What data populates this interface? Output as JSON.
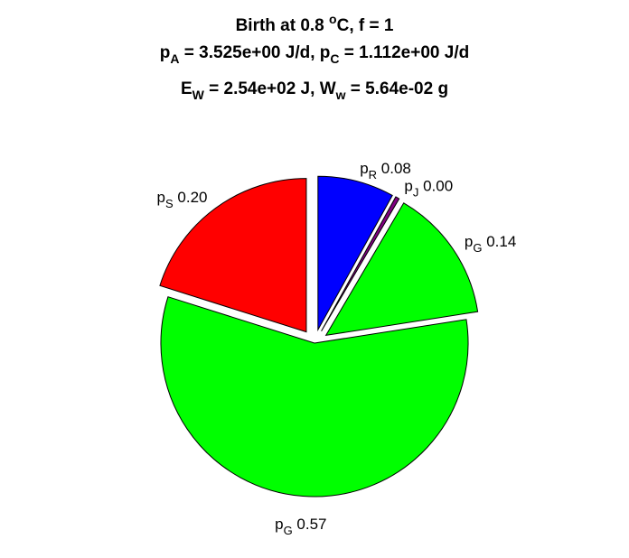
{
  "chart_data": {
    "type": "pie",
    "title": {
      "line1": {
        "prefix": "Birth at 0.8 ",
        "sup": "o",
        "suffix": "C, f = 1"
      },
      "line2": {
        "p1_base": "p",
        "p1_sub": "A",
        "p1_rest": " = 3.525e+00 J/d, ",
        "p2_base": "p",
        "p2_sub": "C",
        "p2_rest": " = 1.112e+00 J/d"
      },
      "line3": {
        "p1_base": "E",
        "p1_sub": "W",
        "p1_rest": " = 2.54e+02 J, ",
        "p2_base": "W",
        "p2_sub": "w",
        "p2_rest": " = 5.64e-02 g"
      }
    },
    "slices": [
      {
        "base": "p",
        "sub": "R",
        "value_label": "0.08",
        "value": 0.08,
        "color": "#0000ff",
        "exploded": true
      },
      {
        "base": "p",
        "sub": "J",
        "value_label": "0.00",
        "value": 0.004,
        "color": "#800080",
        "exploded": true
      },
      {
        "base": "p",
        "sub": "G",
        "value_label": "0.14",
        "value": 0.14,
        "color": "#00ff00",
        "exploded": true
      },
      {
        "base": "p",
        "sub": "G",
        "value_label": "0.57",
        "value": 0.57,
        "color": "#00ff00",
        "exploded": false
      },
      {
        "base": "p",
        "sub": "S",
        "value_label": "0.20",
        "value": 0.2,
        "color": "#ff0000",
        "exploded": true
      }
    ]
  }
}
